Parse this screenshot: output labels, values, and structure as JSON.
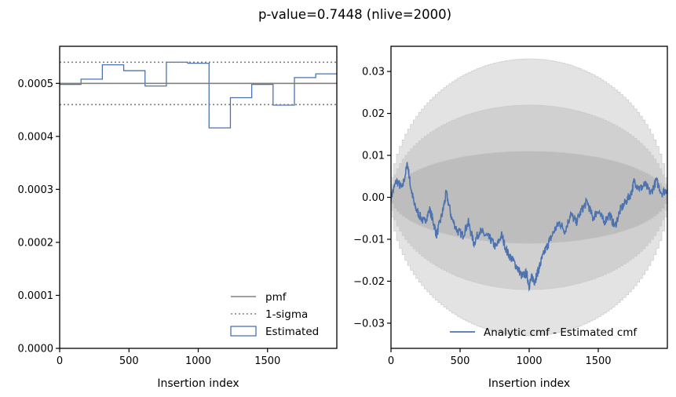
{
  "figure": {
    "title": "p-value=0.7448 (nlive=2000)"
  },
  "chart_data": [
    {
      "type": "step",
      "xlabel": "Insertion index",
      "ylabel": "",
      "xlim": [
        0,
        2000
      ],
      "ylim": [
        0,
        0.00057
      ],
      "xticks": [
        0,
        500,
        1000,
        1500
      ],
      "xtick_labels": [
        "0",
        "500",
        "1000",
        "1500"
      ],
      "yticks": [
        0,
        0.0001,
        0.0002,
        0.0003,
        0.0004,
        0.0005
      ],
      "ytick_labels": [
        "0.0000",
        "0.0001",
        "0.0002",
        "0.0003",
        "0.0004",
        "0.0005"
      ],
      "pmf": 0.0005,
      "sigma_upper": 0.00054,
      "sigma_lower": 0.00046,
      "bin_edges": [
        0,
        154,
        308,
        462,
        616,
        770,
        924,
        1078,
        1232,
        1386,
        1540,
        1694,
        1848,
        2000
      ],
      "estimated": [
        0.000498,
        0.000508,
        0.000535,
        0.000524,
        0.000495,
        0.00054,
        0.000538,
        0.000416,
        0.000473,
        0.000498,
        0.000459,
        0.000511,
        0.000518
      ],
      "colors": {
        "pmf": "#808080",
        "sigma": "#808080",
        "estimated": "#4c72b0"
      },
      "legend": {
        "location": "lower-right",
        "entries": [
          {
            "label": "pmf",
            "style": "solid"
          },
          {
            "label": "1-sigma",
            "style": "dotted"
          },
          {
            "label": "Estimated",
            "style": "patch"
          }
        ]
      }
    },
    {
      "type": "line",
      "xlabel": "Insertion index",
      "ylabel": "",
      "xlim": [
        0,
        2000
      ],
      "ylim": [
        -0.036,
        0.036
      ],
      "xticks": [
        0,
        500,
        1000,
        1500
      ],
      "xtick_labels": [
        "0",
        "500",
        "1000",
        "1500"
      ],
      "yticks": [
        -0.03,
        -0.02,
        -0.01,
        0.0,
        0.01,
        0.02,
        0.03
      ],
      "ytick_labels": [
        "−0.03",
        "−0.02",
        "−0.01",
        "0.00",
        "0.01",
        "0.02",
        "0.03"
      ],
      "bands": [
        {
          "name": "1-sigma",
          "max_half_width": 0.011
        },
        {
          "name": "2-sigma",
          "max_half_width": 0.022
        },
        {
          "name": "3-sigma",
          "max_half_width": 0.033
        }
      ],
      "series": [
        {
          "name": "Analytic cmf - Estimated cmf",
          "color": "#4c72b0",
          "x": [
            0,
            40,
            80,
            120,
            140,
            170,
            200,
            240,
            280,
            300,
            330,
            370,
            400,
            440,
            480,
            520,
            560,
            600,
            640,
            680,
            720,
            760,
            800,
            840,
            880,
            920,
            950,
            980,
            1000,
            1020,
            1040,
            1060,
            1080,
            1110,
            1140,
            1180,
            1220,
            1260,
            1300,
            1340,
            1380,
            1420,
            1460,
            1500,
            1540,
            1580,
            1620,
            1660,
            1700,
            1740,
            1760,
            1800,
            1840,
            1880,
            1920,
            1960,
            2000
          ],
          "y": [
            0.0,
            0.004,
            0.002,
            0.008,
            0.003,
            -0.002,
            -0.004,
            -0.006,
            -0.003,
            -0.005,
            -0.009,
            -0.004,
            0.001,
            -0.005,
            -0.008,
            -0.009,
            -0.006,
            -0.011,
            -0.008,
            -0.009,
            -0.01,
            -0.012,
            -0.009,
            -0.013,
            -0.015,
            -0.017,
            -0.019,
            -0.018,
            -0.021,
            -0.019,
            -0.02,
            -0.018,
            -0.016,
            -0.013,
            -0.011,
            -0.008,
            -0.006,
            -0.008,
            -0.004,
            -0.006,
            -0.003,
            -0.001,
            -0.005,
            -0.003,
            -0.006,
            -0.004,
            -0.007,
            -0.003,
            -0.001,
            0.001,
            0.004,
            0.002,
            0.003,
            0.001,
            0.004,
            0.001,
            0.002
          ]
        }
      ],
      "legend": {
        "location": "lower-right",
        "entries": [
          {
            "label": "Analytic cmf - Estimated cmf",
            "style": "solid"
          }
        ]
      }
    }
  ]
}
